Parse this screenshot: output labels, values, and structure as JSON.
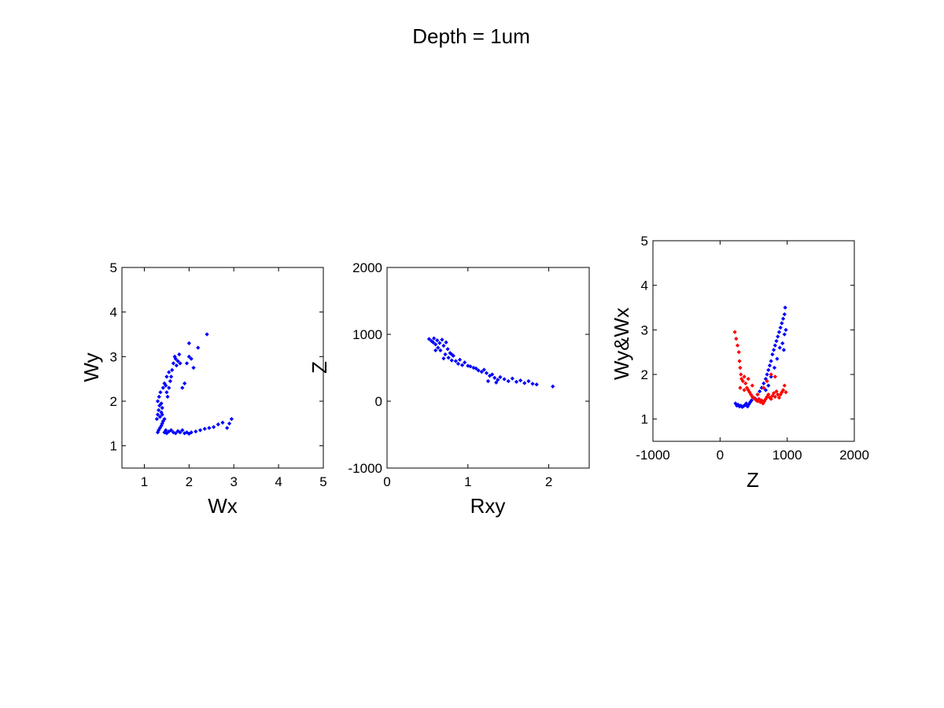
{
  "figure_title": "Depth = 1um",
  "colors": {
    "blue": "#0000ff",
    "red": "#ff0000"
  },
  "chart_data": [
    {
      "type": "scatter",
      "xlabel": "Wx",
      "ylabel": "Wy",
      "xlim": [
        0.5,
        5
      ],
      "ylim": [
        0.5,
        5
      ],
      "xticks": [
        1,
        2,
        3,
        4,
        5
      ],
      "yticks": [
        1,
        2,
        3,
        4,
        5
      ],
      "series": [
        {
          "color": "#0000ff",
          "points": [
            [
              1.3,
              1.3
            ],
            [
              1.32,
              1.35
            ],
            [
              1.35,
              1.4
            ],
            [
              1.38,
              1.45
            ],
            [
              1.4,
              1.5
            ],
            [
              1.42,
              1.55
            ],
            [
              1.45,
              1.3
            ],
            [
              1.48,
              1.35
            ],
            [
              1.5,
              1.28
            ],
            [
              1.55,
              1.32
            ],
            [
              1.6,
              1.35
            ],
            [
              1.65,
              1.3
            ],
            [
              1.7,
              1.28
            ],
            [
              1.75,
              1.33
            ],
            [
              1.8,
              1.3
            ],
            [
              1.85,
              1.35
            ],
            [
              1.9,
              1.28
            ],
            [
              1.95,
              1.3
            ],
            [
              2.0,
              1.27
            ],
            [
              2.05,
              1.3
            ],
            [
              2.15,
              1.32
            ],
            [
              2.25,
              1.35
            ],
            [
              2.35,
              1.38
            ],
            [
              2.45,
              1.4
            ],
            [
              2.55,
              1.42
            ],
            [
              2.65,
              1.48
            ],
            [
              2.75,
              1.52
            ],
            [
              2.85,
              1.4
            ],
            [
              2.9,
              1.5
            ],
            [
              2.95,
              1.6
            ],
            [
              1.28,
              1.6
            ],
            [
              1.3,
              1.7
            ],
            [
              1.32,
              1.8
            ],
            [
              1.34,
              1.9
            ],
            [
              1.3,
              2.0
            ],
            [
              1.33,
              2.1
            ],
            [
              1.36,
              2.2
            ],
            [
              1.38,
              1.75
            ],
            [
              1.4,
              1.85
            ],
            [
              1.35,
              1.65
            ],
            [
              1.42,
              2.3
            ],
            [
              1.45,
              2.4
            ],
            [
              1.48,
              2.35
            ],
            [
              1.5,
              2.2
            ],
            [
              1.52,
              2.1
            ],
            [
              1.55,
              2.3
            ],
            [
              1.58,
              2.45
            ],
            [
              1.6,
              2.55
            ],
            [
              1.62,
              2.7
            ],
            [
              1.65,
              2.85
            ],
            [
              1.68,
              3.0
            ],
            [
              1.7,
              2.95
            ],
            [
              1.72,
              2.8
            ],
            [
              1.75,
              2.9
            ],
            [
              1.78,
              3.05
            ],
            [
              1.8,
              2.85
            ],
            [
              1.85,
              2.3
            ],
            [
              1.9,
              2.4
            ],
            [
              1.95,
              2.85
            ],
            [
              2.0,
              3.0
            ],
            [
              2.05,
              2.95
            ],
            [
              2.1,
              2.75
            ],
            [
              2.0,
              3.3
            ],
            [
              2.2,
              3.2
            ],
            [
              2.4,
              3.5
            ],
            [
              1.55,
              2.65
            ],
            [
              1.5,
              2.55
            ],
            [
              1.45,
              1.6
            ],
            [
              1.4,
              1.7
            ],
            [
              1.38,
              1.95
            ]
          ]
        }
      ]
    },
    {
      "type": "scatter",
      "xlabel": "Rxy",
      "ylabel": "Z",
      "xlim": [
        0,
        2.5
      ],
      "ylim": [
        -1000,
        2000
      ],
      "xticks": [
        0,
        1,
        2
      ],
      "yticks": [
        -1000,
        0,
        1000,
        2000
      ],
      "series": [
        {
          "color": "#0000ff",
          "points": [
            [
              0.52,
              930
            ],
            [
              0.55,
              900
            ],
            [
              0.57,
              880
            ],
            [
              0.58,
              940
            ],
            [
              0.6,
              850
            ],
            [
              0.62,
              910
            ],
            [
              0.63,
              800
            ],
            [
              0.65,
              870
            ],
            [
              0.66,
              760
            ],
            [
              0.68,
              920
            ],
            [
              0.7,
              830
            ],
            [
              0.72,
              700
            ],
            [
              0.73,
              880
            ],
            [
              0.75,
              780
            ],
            [
              0.76,
              650
            ],
            [
              0.78,
              720
            ],
            [
              0.8,
              610
            ],
            [
              0.82,
              680
            ],
            [
              0.85,
              600
            ],
            [
              0.88,
              560
            ],
            [
              0.9,
              620
            ],
            [
              0.93,
              540
            ],
            [
              0.96,
              580
            ],
            [
              1.0,
              530
            ],
            [
              1.03,
              520
            ],
            [
              1.07,
              500
            ],
            [
              1.1,
              490
            ],
            [
              1.13,
              460
            ],
            [
              1.17,
              440
            ],
            [
              1.2,
              470
            ],
            [
              1.23,
              420
            ],
            [
              1.27,
              380
            ],
            [
              1.3,
              400
            ],
            [
              1.33,
              350
            ],
            [
              1.37,
              320
            ],
            [
              1.4,
              360
            ],
            [
              1.45,
              330
            ],
            [
              1.5,
              300
            ],
            [
              1.55,
              340
            ],
            [
              1.6,
              290
            ],
            [
              1.65,
              310
            ],
            [
              1.7,
              270
            ],
            [
              1.75,
              300
            ],
            [
              1.8,
              260
            ],
            [
              1.85,
              250
            ],
            [
              2.05,
              220
            ],
            [
              1.35,
              280
            ],
            [
              1.25,
              300
            ],
            [
              0.6,
              760
            ],
            [
              0.7,
              640
            ],
            [
              0.8,
              700
            ]
          ]
        }
      ]
    },
    {
      "type": "scatter",
      "xlabel": "Z",
      "ylabel": "Wy&Wx",
      "xlim": [
        -1000,
        2000
      ],
      "ylim": [
        0.5,
        5
      ],
      "xticks": [
        -1000,
        0,
        1000,
        2000
      ],
      "yticks": [
        1,
        2,
        3,
        4,
        5
      ],
      "series": [
        {
          "color": "#0000ff",
          "points": [
            [
              230,
              1.35
            ],
            [
              250,
              1.3
            ],
            [
              270,
              1.32
            ],
            [
              290,
              1.28
            ],
            [
              310,
              1.3
            ],
            [
              330,
              1.27
            ],
            [
              350,
              1.29
            ],
            [
              370,
              1.31
            ],
            [
              390,
              1.35
            ],
            [
              410,
              1.28
            ],
            [
              430,
              1.33
            ],
            [
              450,
              1.38
            ],
            [
              470,
              1.42
            ],
            [
              500,
              1.48
            ],
            [
              530,
              1.45
            ],
            [
              560,
              1.55
            ],
            [
              590,
              1.62
            ],
            [
              620,
              1.7
            ],
            [
              650,
              1.8
            ],
            [
              680,
              1.9
            ],
            [
              700,
              2.0
            ],
            [
              720,
              2.1
            ],
            [
              740,
              2.2
            ],
            [
              760,
              2.3
            ],
            [
              780,
              2.45
            ],
            [
              800,
              2.55
            ],
            [
              820,
              2.65
            ],
            [
              840,
              2.75
            ],
            [
              860,
              2.85
            ],
            [
              880,
              2.95
            ],
            [
              900,
              3.05
            ],
            [
              920,
              3.15
            ],
            [
              940,
              3.25
            ],
            [
              960,
              3.35
            ],
            [
              970,
              3.5
            ],
            [
              930,
              2.7
            ],
            [
              890,
              2.6
            ],
            [
              850,
              2.35
            ],
            [
              810,
              2.15
            ],
            [
              760,
              1.95
            ],
            [
              720,
              1.75
            ],
            [
              680,
              1.65
            ],
            [
              960,
              2.9
            ],
            [
              980,
              3.0
            ],
            [
              950,
              2.55
            ]
          ]
        },
        {
          "color": "#ff0000",
          "points": [
            [
              220,
              2.95
            ],
            [
              240,
              2.8
            ],
            [
              260,
              2.65
            ],
            [
              280,
              2.5
            ],
            [
              290,
              2.3
            ],
            [
              300,
              2.15
            ],
            [
              310,
              2.0
            ],
            [
              320,
              1.9
            ],
            [
              340,
              1.85
            ],
            [
              360,
              1.95
            ],
            [
              380,
              1.8
            ],
            [
              400,
              1.7
            ],
            [
              420,
              1.65
            ],
            [
              440,
              1.6
            ],
            [
              460,
              1.55
            ],
            [
              480,
              1.5
            ],
            [
              500,
              1.48
            ],
            [
              520,
              1.45
            ],
            [
              540,
              1.42
            ],
            [
              560,
              1.4
            ],
            [
              580,
              1.45
            ],
            [
              600,
              1.38
            ],
            [
              620,
              1.42
            ],
            [
              640,
              1.35
            ],
            [
              660,
              1.4
            ],
            [
              680,
              1.45
            ],
            [
              700,
              1.5
            ],
            [
              720,
              1.55
            ],
            [
              740,
              1.48
            ],
            [
              760,
              1.45
            ],
            [
              780,
              1.52
            ],
            [
              800,
              1.58
            ],
            [
              820,
              1.5
            ],
            [
              840,
              1.62
            ],
            [
              860,
              1.55
            ],
            [
              880,
              1.48
            ],
            [
              900,
              1.55
            ],
            [
              920,
              1.6
            ],
            [
              940,
              1.65
            ],
            [
              960,
              1.75
            ],
            [
              980,
              1.6
            ],
            [
              700,
              1.85
            ],
            [
              650,
              1.7
            ],
            [
              760,
              2.0
            ],
            [
              820,
              1.95
            ],
            [
              300,
              1.7
            ],
            [
              360,
              1.65
            ],
            [
              420,
              1.9
            ],
            [
              480,
              1.75
            ],
            [
              560,
              1.55
            ]
          ]
        }
      ]
    }
  ]
}
